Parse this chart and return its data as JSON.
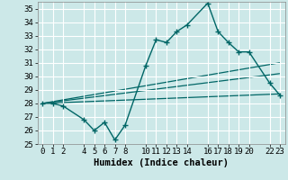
{
  "xlabel": "Humidex (Indice chaleur)",
  "bg_color": "#cce8e8",
  "grid_color": "#ffffff",
  "line_color": "#006666",
  "xlim": [
    -0.5,
    23.5
  ],
  "ylim": [
    25,
    35.5
  ],
  "yticks": [
    25,
    26,
    27,
    28,
    29,
    30,
    31,
    32,
    33,
    34,
    35
  ],
  "xticks": [
    0,
    1,
    2,
    4,
    5,
    6,
    7,
    8,
    10,
    11,
    12,
    13,
    14,
    16,
    17,
    18,
    19,
    20,
    22,
    23
  ],
  "line1_x": [
    0,
    1,
    2,
    4,
    5,
    6,
    7,
    8,
    10,
    11,
    12,
    13,
    14,
    16,
    17,
    18,
    19,
    20,
    22,
    23
  ],
  "line1_y": [
    28.0,
    28.0,
    27.8,
    26.8,
    26.0,
    26.6,
    25.3,
    26.4,
    30.8,
    32.7,
    32.5,
    33.3,
    33.8,
    35.4,
    33.3,
    32.5,
    31.8,
    31.8,
    29.5,
    28.6
  ],
  "line2_x": [
    0,
    23
  ],
  "line2_y": [
    28.0,
    31.0
  ],
  "line3_x": [
    0,
    23
  ],
  "line3_y": [
    28.0,
    30.2
  ],
  "line4_x": [
    0,
    23
  ],
  "line4_y": [
    28.0,
    28.7
  ],
  "tick_fontsize": 6.5,
  "label_fontsize": 7.5
}
